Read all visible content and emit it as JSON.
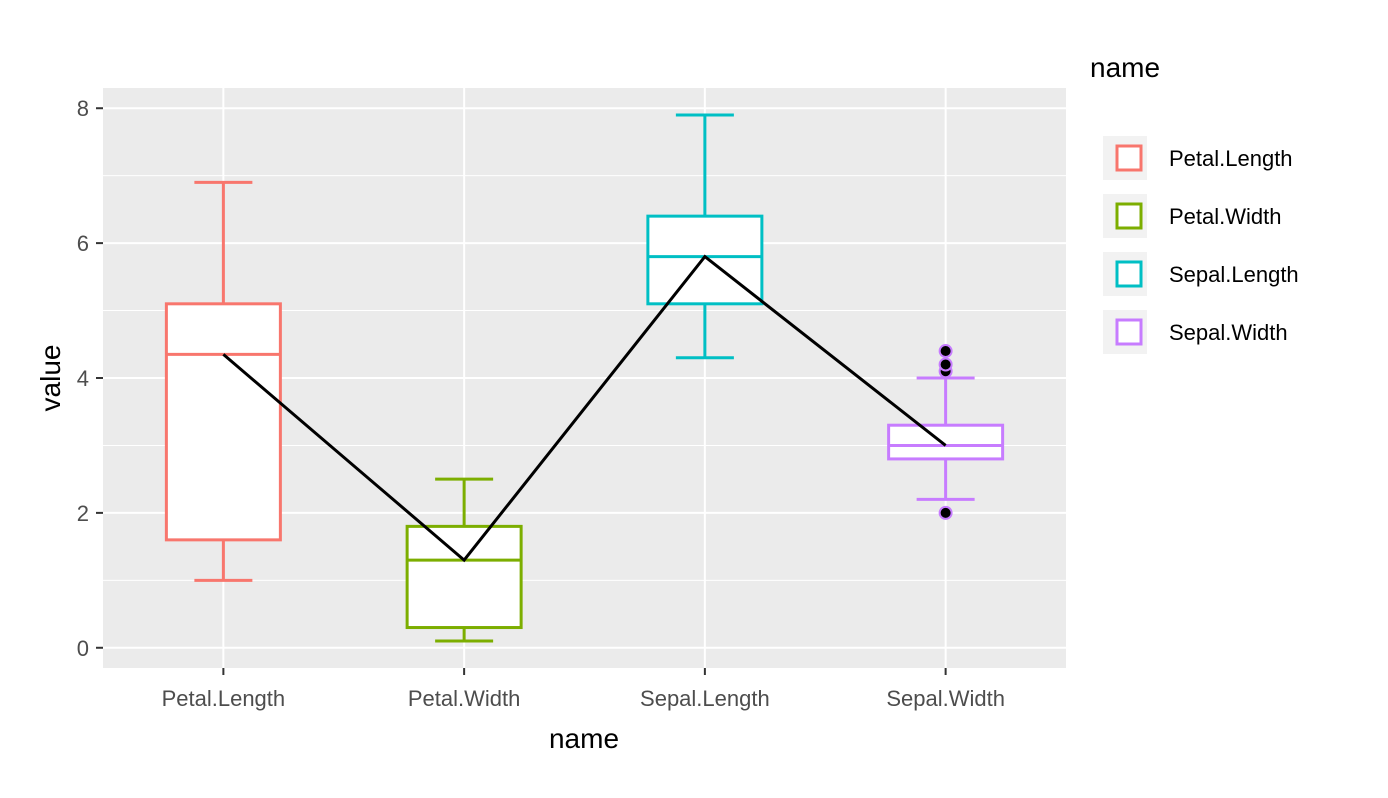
{
  "chart_data": {
    "type": "box",
    "xlabel": "name",
    "ylabel": "value",
    "ylim": [
      -0.3,
      8.3
    ],
    "yticks": [
      0,
      2,
      4,
      6,
      8
    ],
    "categories": [
      "Petal.Length",
      "Petal.Width",
      "Sepal.Length",
      "Sepal.Width"
    ],
    "boxes": [
      {
        "name": "Petal.Length",
        "color": "#F8766D",
        "min": 1.0,
        "q1": 1.6,
        "median": 4.35,
        "q3": 5.1,
        "max": 6.9,
        "outliers": []
      },
      {
        "name": "Petal.Width",
        "color": "#7CAE00",
        "min": 0.1,
        "q1": 0.3,
        "median": 1.3,
        "q3": 1.8,
        "max": 2.5,
        "outliers": []
      },
      {
        "name": "Sepal.Length",
        "color": "#00BFC4",
        "min": 4.3,
        "q1": 5.1,
        "median": 5.8,
        "q3": 6.4,
        "max": 7.9,
        "outliers": []
      },
      {
        "name": "Sepal.Width",
        "color": "#C77CFF",
        "min": 2.2,
        "q1": 2.8,
        "median": 3.0,
        "q3": 3.3,
        "max": 4.0,
        "outliers": [
          2.0,
          4.1,
          4.2,
          4.4
        ]
      }
    ],
    "line": {
      "color": "#000000",
      "values": [
        4.35,
        1.3,
        5.8,
        3.0
      ]
    },
    "legend": {
      "title": "name",
      "position": "right",
      "items": [
        {
          "label": "Petal.Length",
          "color": "#F8766D"
        },
        {
          "label": "Petal.Width",
          "color": "#7CAE00"
        },
        {
          "label": "Sepal.Length",
          "color": "#00BFC4"
        },
        {
          "label": "Sepal.Width",
          "color": "#C77CFF"
        }
      ]
    },
    "panel_background": "#EBEBEB",
    "grid_color": "#FFFFFF",
    "grid": true
  }
}
